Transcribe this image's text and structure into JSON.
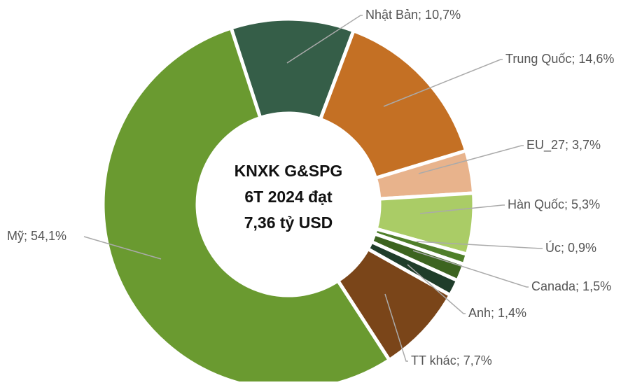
{
  "chart_data": {
    "type": "donut",
    "center_text": [
      "KNXK G&SPG",
      "6T 2024  đạt",
      "7,36 tỷ USD"
    ],
    "categories": [
      "Nhật Bản",
      "Trung Quốc",
      "EU_27",
      "Hàn Quốc",
      "Úc",
      "Canada",
      "Anh",
      "TT khác",
      "Mỹ"
    ],
    "values": [
      10.7,
      14.6,
      3.7,
      5.3,
      0.9,
      1.5,
      1.4,
      7.7,
      54.1
    ],
    "value_labels": [
      "Nhật Bản; 10,7%",
      "Trung Quốc; 14,6%",
      "EU_27; 3,7%",
      "Hàn Quốc; 5,3%",
      "Úc; 0,9%",
      "Canada; 1,5%",
      "Anh; 1,4%",
      "TT khác; 7,7%",
      "Mỹ; 54,1%"
    ],
    "colors": [
      "#355e48",
      "#c47024",
      "#e8b38c",
      "#aacc66",
      "#4f7f2a",
      "#3d6420",
      "#1f3d2a",
      "#7a4519",
      "#6a9a30"
    ]
  }
}
